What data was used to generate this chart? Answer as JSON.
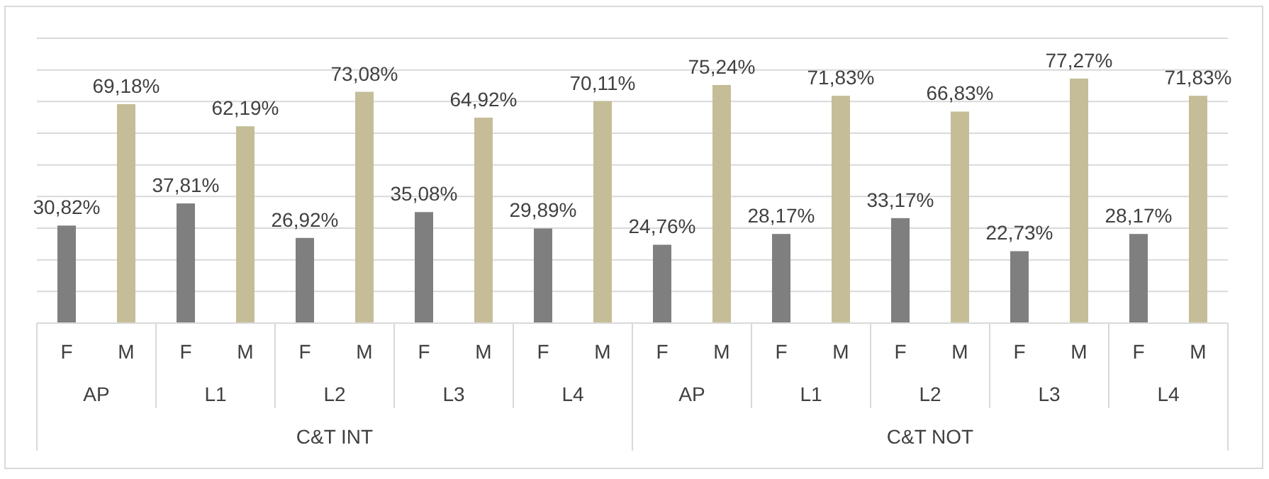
{
  "chart_data": {
    "type": "bar",
    "categories": [
      "F",
      "M",
      "F",
      "M",
      "F",
      "M",
      "F",
      "M",
      "F",
      "M",
      "F",
      "M",
      "F",
      "M",
      "F",
      "M",
      "F",
      "M",
      "F",
      "M"
    ],
    "values": [
      30.82,
      69.18,
      37.81,
      62.19,
      26.92,
      73.08,
      35.08,
      64.92,
      29.89,
      70.11,
      24.76,
      75.24,
      28.17,
      71.83,
      33.17,
      66.83,
      22.73,
      77.27,
      28.17,
      71.83
    ],
    "value_labels": [
      "30,82%",
      "69,18%",
      "37,81%",
      "62,19%",
      "26,92%",
      "73,08%",
      "35,08%",
      "64,92%",
      "29,89%",
      "70,11%",
      "24,76%",
      "75,24%",
      "28,17%",
      "71,83%",
      "33,17%",
      "66,83%",
      "22,73%",
      "77,27%",
      "28,17%",
      "71,83%"
    ],
    "colors": [
      "#7f7f7f",
      "#c4bd97",
      "#7f7f7f",
      "#c4bd97",
      "#7f7f7f",
      "#c4bd97",
      "#7f7f7f",
      "#c4bd97",
      "#7f7f7f",
      "#c4bd97",
      "#7f7f7f",
      "#c4bd97",
      "#7f7f7f",
      "#c4bd97",
      "#7f7f7f",
      "#c4bd97",
      "#7f7f7f",
      "#c4bd97",
      "#7f7f7f",
      "#c4bd97"
    ],
    "annotations": [
      "AP",
      "L1",
      "L2",
      "L3",
      "L4",
      "AP",
      "L1",
      "L2",
      "L3",
      "L4",
      "C&T INT",
      "C&T NOT"
    ],
    "ylim": [
      0,
      90
    ],
    "yticks": [
      {
        "value": 0,
        "label": null
      },
      {
        "value": 10,
        "label": null
      },
      {
        "value": 20,
        "label": null
      },
      {
        "value": 30,
        "label": null
      },
      {
        "value": 40,
        "label": null
      },
      {
        "value": 50,
        "label": null
      },
      {
        "value": 60,
        "label": null
      },
      {
        "value": 70,
        "label": null
      },
      {
        "value": 80,
        "label": null
      },
      {
        "value": 90,
        "label": null
      }
    ],
    "grid": "y",
    "tick_labels": "x"
  }
}
